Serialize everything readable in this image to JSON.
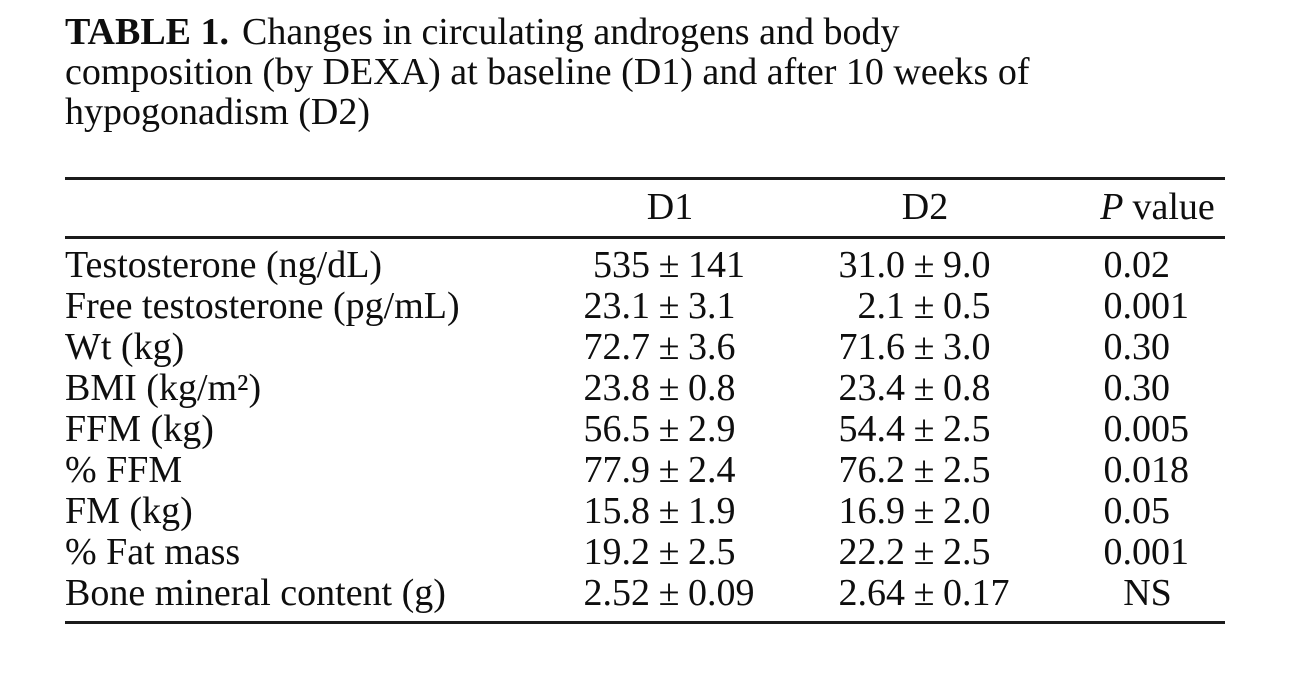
{
  "title": {
    "label": "TABLE 1.",
    "lines": [
      "Changes in circulating androgens and body",
      "composition (by DEXA) at baseline (D1) and after 10 weeks of",
      "hypogonadism (D2)"
    ]
  },
  "table": {
    "pm": "±",
    "columns": {
      "label": "",
      "d1": "D1",
      "d2": "D2",
      "p_symbol": "P",
      "p_word": "value"
    },
    "rows": [
      {
        "label": "Testosterone (ng/dL)",
        "d1": {
          "mean": "535",
          "sd": "141"
        },
        "d2": {
          "mean": "31.0",
          "sd": "9.0"
        },
        "p": "0.02"
      },
      {
        "label": "Free testosterone (pg/mL)",
        "d1": {
          "mean": "23.1",
          "sd": "3.1"
        },
        "d2": {
          "mean": "2.1",
          "sd": "0.5"
        },
        "p": "0.001"
      },
      {
        "label": "Wt (kg)",
        "d1": {
          "mean": "72.7",
          "sd": "3.6"
        },
        "d2": {
          "mean": "71.6",
          "sd": "3.0"
        },
        "p": "0.30"
      },
      {
        "label": "BMI (kg/m²)",
        "d1": {
          "mean": "23.8",
          "sd": "0.8"
        },
        "d2": {
          "mean": "23.4",
          "sd": "0.8"
        },
        "p": "0.30"
      },
      {
        "label": "FFM (kg)",
        "d1": {
          "mean": "56.5",
          "sd": "2.9"
        },
        "d2": {
          "mean": "54.4",
          "sd": "2.5"
        },
        "p": "0.005"
      },
      {
        "label": "% FFM",
        "d1": {
          "mean": "77.9",
          "sd": "2.4"
        },
        "d2": {
          "mean": "76.2",
          "sd": "2.5"
        },
        "p": "0.018"
      },
      {
        "label": "FM (kg)",
        "d1": {
          "mean": "15.8",
          "sd": "1.9"
        },
        "d2": {
          "mean": "16.9",
          "sd": "2.0"
        },
        "p": "0.05"
      },
      {
        "label": "% Fat mass",
        "d1": {
          "mean": "19.2",
          "sd": "2.5"
        },
        "d2": {
          "mean": "22.2",
          "sd": "2.5"
        },
        "p": "0.001"
      },
      {
        "label": "Bone mineral content (g)",
        "d1": {
          "mean": "2.52",
          "sd": "0.09"
        },
        "d2": {
          "mean": "2.64",
          "sd": "0.17"
        },
        "p": "NS"
      }
    ]
  },
  "colors": {
    "text": "#0e0e0e",
    "rule": "#1b1b1b",
    "background": "#ffffff"
  }
}
